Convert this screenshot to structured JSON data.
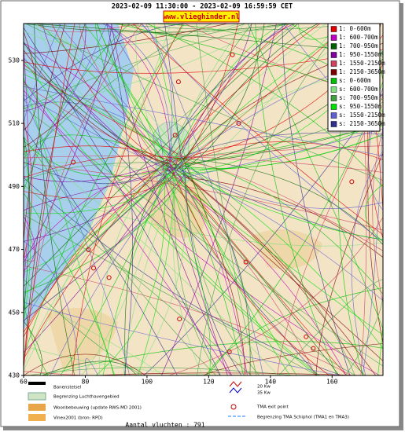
{
  "header": {
    "title": "2023-02-09 11:30:00 - 2023-02-09 16:59:59 CET",
    "site": "www.vlieghinder.nl"
  },
  "map": {
    "xlim": [
      60,
      176.5
    ],
    "ylim": [
      430,
      541.7
    ],
    "xticks": [
      60,
      80,
      100,
      120,
      140,
      160
    ],
    "yticks": [
      530,
      510,
      490,
      470,
      450,
      430
    ]
  },
  "legend": [
    {
      "label": "1: 0-600m",
      "color": "#e00000"
    },
    {
      "label": "1: 600-700m",
      "color": "#c000c0"
    },
    {
      "label": "1: 700-950m",
      "color": "#006000"
    },
    {
      "label": "1: 950-1550m",
      "color": "#8000a0"
    },
    {
      "label": "1: 1550-2150m",
      "color": "#d04060"
    },
    {
      "label": "1: 2150-3650m",
      "color": "#800000"
    },
    {
      "label": "s: 0-600m",
      "color": "#00c000"
    },
    {
      "label": "s: 600-700m",
      "color": "#80e080"
    },
    {
      "label": "s: 700-950m",
      "color": "#40a040"
    },
    {
      "label": "s: 950-1550m",
      "color": "#00e000"
    },
    {
      "label": "s: 1550-2150m",
      "color": "#6060d0"
    },
    {
      "label": "s: 2150-3650m",
      "color": "#303090"
    }
  ],
  "key": {
    "runways": "Banenstelsel",
    "airport": "Begrenzing Luchthavengebied",
    "housing": "Woonbebouwing (update RWS-MD 2001)",
    "vinex": "Vinex2001 (bron: RPD)",
    "kw20": "20 Kw",
    "kw35": "35 Kw",
    "exit": "TMA exit point",
    "tma": "Begrenzing TMA Schiphol  (TMA1 en TMA3)"
  },
  "footer": "Aantal vluchten : 791"
}
